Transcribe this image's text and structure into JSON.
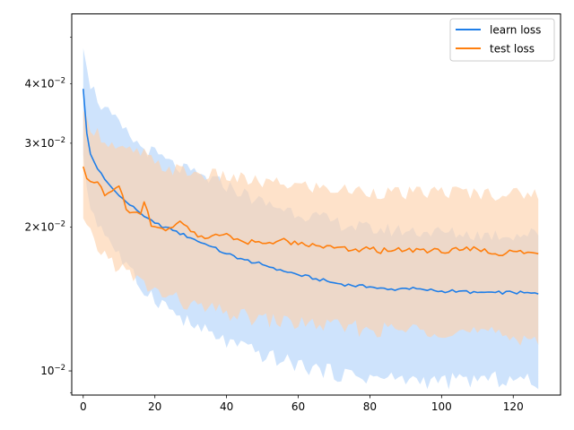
{
  "chart_data": {
    "type": "line",
    "title": "",
    "xlabel": "",
    "ylabel": "",
    "yscale": "log",
    "xlim": [
      -3.2,
      133.2
    ],
    "ylim": [
      0.0089,
      0.056
    ],
    "x_ticks": [
      0,
      20,
      40,
      60,
      80,
      100,
      120
    ],
    "y_major_ticks": [
      {
        "value": 0.01,
        "base": "10",
        "exp": "−2"
      }
    ],
    "y_minor_labeled_ticks": [
      {
        "value": 0.02,
        "mant": "2",
        "base": "10",
        "exp": "−2"
      },
      {
        "value": 0.03,
        "mant": "3",
        "base": "10",
        "exp": "−2"
      },
      {
        "value": 0.04,
        "mant": "4",
        "base": "10",
        "exp": "−2"
      }
    ],
    "y_minor_unlabeled_ticks": [
      0.009,
      0.05
    ],
    "legend": {
      "position": "top-right",
      "entries": [
        "learn loss",
        "test loss"
      ]
    },
    "x_range": [
      0,
      127
    ],
    "series": [
      {
        "name": "learn loss",
        "color": "#1f7ee8",
        "band_color": "#b3d4fb",
        "anchors": [
          [
            0,
            0.039
          ],
          [
            1,
            0.0315
          ],
          [
            2,
            0.0285
          ],
          [
            4,
            0.0265
          ],
          [
            6,
            0.0252
          ],
          [
            8,
            0.0242
          ],
          [
            10,
            0.0233
          ],
          [
            12,
            0.0226
          ],
          [
            15,
            0.0217
          ],
          [
            18,
            0.0209
          ],
          [
            20,
            0.0204
          ],
          [
            25,
            0.0197
          ],
          [
            30,
            0.019
          ],
          [
            35,
            0.0183
          ],
          [
            40,
            0.0176
          ],
          [
            45,
            0.0171
          ],
          [
            50,
            0.0167
          ],
          [
            55,
            0.0163
          ],
          [
            60,
            0.0159
          ],
          [
            65,
            0.0156
          ],
          [
            70,
            0.0153
          ],
          [
            75,
            0.0151
          ],
          [
            80,
            0.015
          ],
          [
            85,
            0.0148
          ],
          [
            90,
            0.0149
          ],
          [
            95,
            0.0148
          ],
          [
            100,
            0.0147
          ],
          [
            105,
            0.0147
          ],
          [
            110,
            0.0146
          ],
          [
            115,
            0.0146
          ],
          [
            120,
            0.0146
          ],
          [
            127,
            0.0145
          ]
        ],
        "upper_anchors": [
          [
            0,
            0.049
          ],
          [
            2,
            0.04
          ],
          [
            5,
            0.036
          ],
          [
            8,
            0.034
          ],
          [
            12,
            0.0315
          ],
          [
            16,
            0.0295
          ],
          [
            20,
            0.0285
          ],
          [
            25,
            0.027
          ],
          [
            30,
            0.026
          ],
          [
            40,
            0.0245
          ],
          [
            50,
            0.0225
          ],
          [
            60,
            0.0215
          ],
          [
            70,
            0.0205
          ],
          [
            80,
            0.0198
          ],
          [
            90,
            0.0197
          ],
          [
            100,
            0.0195
          ],
          [
            110,
            0.0193
          ],
          [
            120,
            0.0193
          ],
          [
            127,
            0.0194
          ]
        ],
        "lower_anchors": [
          [
            0,
            0.0275
          ],
          [
            2,
            0.022
          ],
          [
            5,
            0.02
          ],
          [
            8,
            0.0185
          ],
          [
            12,
            0.0165
          ],
          [
            16,
            0.015
          ],
          [
            20,
            0.0143
          ],
          [
            25,
            0.0133
          ],
          [
            30,
            0.0125
          ],
          [
            40,
            0.0115
          ],
          [
            50,
            0.0108
          ],
          [
            60,
            0.0103
          ],
          [
            70,
            0.0099
          ],
          [
            80,
            0.0097
          ],
          [
            90,
            0.0096
          ],
          [
            100,
            0.0095
          ],
          [
            110,
            0.0096
          ],
          [
            120,
            0.0096
          ],
          [
            127,
            0.0095
          ]
        ]
      },
      {
        "name": "test loss",
        "color": "#ff7f0e",
        "band_color": "#fed3ae",
        "anchors": [
          [
            0,
            0.0268
          ],
          [
            1,
            0.0253
          ],
          [
            3,
            0.0248
          ],
          [
            5,
            0.0243
          ],
          [
            6,
            0.0233
          ],
          [
            8,
            0.0238
          ],
          [
            10,
            0.0244
          ],
          [
            12,
            0.0218
          ],
          [
            14,
            0.0215
          ],
          [
            16,
            0.0213
          ],
          [
            17,
            0.0226
          ],
          [
            19,
            0.0201
          ],
          [
            22,
            0.0199
          ],
          [
            25,
            0.02
          ],
          [
            27,
            0.0206
          ],
          [
            30,
            0.0196
          ],
          [
            35,
            0.019
          ],
          [
            40,
            0.0194
          ],
          [
            45,
            0.0186
          ],
          [
            50,
            0.0185
          ],
          [
            55,
            0.0188
          ],
          [
            60,
            0.0184
          ],
          [
            65,
            0.0183
          ],
          [
            70,
            0.0181
          ],
          [
            75,
            0.0179
          ],
          [
            80,
            0.018
          ],
          [
            85,
            0.0178
          ],
          [
            90,
            0.0179
          ],
          [
            95,
            0.018
          ],
          [
            100,
            0.0177
          ],
          [
            105,
            0.0179
          ],
          [
            110,
            0.018
          ],
          [
            115,
            0.0176
          ],
          [
            120,
            0.0178
          ],
          [
            127,
            0.0176
          ]
        ],
        "upper_anchors": [
          [
            0,
            0.034
          ],
          [
            5,
            0.031
          ],
          [
            10,
            0.029
          ],
          [
            17,
            0.0285
          ],
          [
            20,
            0.027
          ],
          [
            30,
            0.026
          ],
          [
            40,
            0.0255
          ],
          [
            50,
            0.0248
          ],
          [
            60,
            0.0245
          ],
          [
            70,
            0.024
          ],
          [
            80,
            0.0238
          ],
          [
            90,
            0.0235
          ],
          [
            100,
            0.0238
          ],
          [
            110,
            0.0236
          ],
          [
            120,
            0.0235
          ],
          [
            127,
            0.0236
          ]
        ],
        "lower_anchors": [
          [
            0,
            0.0205
          ],
          [
            3,
            0.0185
          ],
          [
            6,
            0.0175
          ],
          [
            10,
            0.0165
          ],
          [
            15,
            0.0155
          ],
          [
            20,
            0.0147
          ],
          [
            25,
            0.0142
          ],
          [
            30,
            0.0137
          ],
          [
            40,
            0.0132
          ],
          [
            50,
            0.0128
          ],
          [
            60,
            0.0126
          ],
          [
            70,
            0.0124
          ],
          [
            80,
            0.0122
          ],
          [
            90,
            0.0122
          ],
          [
            100,
            0.0122
          ],
          [
            110,
            0.012
          ],
          [
            120,
            0.0118
          ],
          [
            127,
            0.0117
          ]
        ]
      }
    ]
  }
}
